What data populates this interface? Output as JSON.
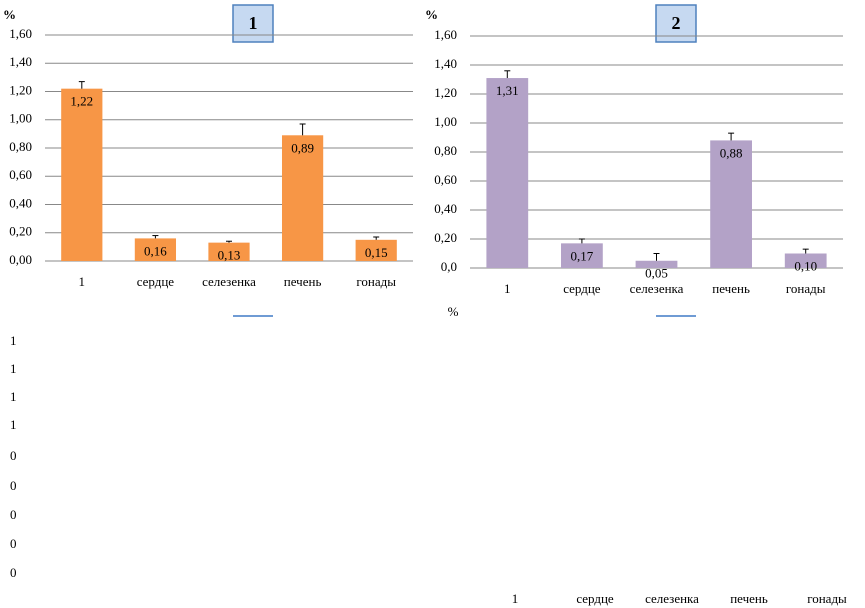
{
  "chart_data": [
    {
      "type": "bar",
      "title": "1",
      "ylabel": "%",
      "categories": [
        "1",
        "сердце",
        "селезенка",
        "печень",
        "гонады"
      ],
      "values": [
        1.22,
        0.16,
        0.13,
        0.89,
        0.15
      ],
      "value_labels": [
        "1,22",
        "0,16",
        "0,13",
        "0,89",
        "0,15"
      ],
      "errors": [
        0.05,
        0.02,
        0.01,
        0.08,
        0.02
      ],
      "color": "#f79646",
      "grid": true,
      "ylim": [
        0,
        1.6
      ],
      "yticks": [
        {
          "value": 0,
          "label": "0,00"
        },
        {
          "value": 0.2,
          "label": "0,20"
        },
        {
          "value": 0.4,
          "label": "0,40"
        },
        {
          "value": 0.6,
          "label": "0,60"
        },
        {
          "value": 0.8,
          "label": "0,80"
        },
        {
          "value": 1.0,
          "label": "1,00"
        },
        {
          "value": 1.2,
          "label": "1,20"
        },
        {
          "value": 1.4,
          "label": "1,40"
        },
        {
          "value": 1.6,
          "label": "1,60"
        }
      ]
    },
    {
      "type": "bar",
      "title": "2",
      "ylabel": "%",
      "categories": [
        "1",
        "сердце",
        "селезенка",
        "печень",
        "гонады"
      ],
      "values": [
        1.31,
        0.17,
        0.05,
        0.88,
        0.1
      ],
      "value_labels": [
        "1,31",
        "0,17",
        "0,05",
        "0,88",
        "0,10"
      ],
      "errors": [
        0.05,
        0.03,
        0.05,
        0.05,
        0.03
      ],
      "color": "#b3a2c7",
      "grid": true,
      "ylim": [
        0,
        1.6
      ],
      "yticks": [
        {
          "value": 0,
          "label": "0,0"
        },
        {
          "value": 0.2,
          "label": "0,20"
        },
        {
          "value": 0.4,
          "label": "0,40"
        },
        {
          "value": 0.6,
          "label": "0,60"
        },
        {
          "value": 0.8,
          "label": "0,80"
        },
        {
          "value": 1.0,
          "label": "1,00"
        },
        {
          "value": 1.2,
          "label": "1,20"
        },
        {
          "value": 1.4,
          "label": "1,40"
        },
        {
          "value": 1.6,
          "label": "1,60"
        }
      ]
    }
  ],
  "fragments": {
    "left_labels": [
      "1",
      "1",
      "1",
      "1",
      "0",
      "0",
      "0",
      "0",
      "0"
    ],
    "percent": "%",
    "bottom_categories": [
      "1",
      "сердце",
      "селезенка",
      "печень",
      "гонады"
    ]
  }
}
